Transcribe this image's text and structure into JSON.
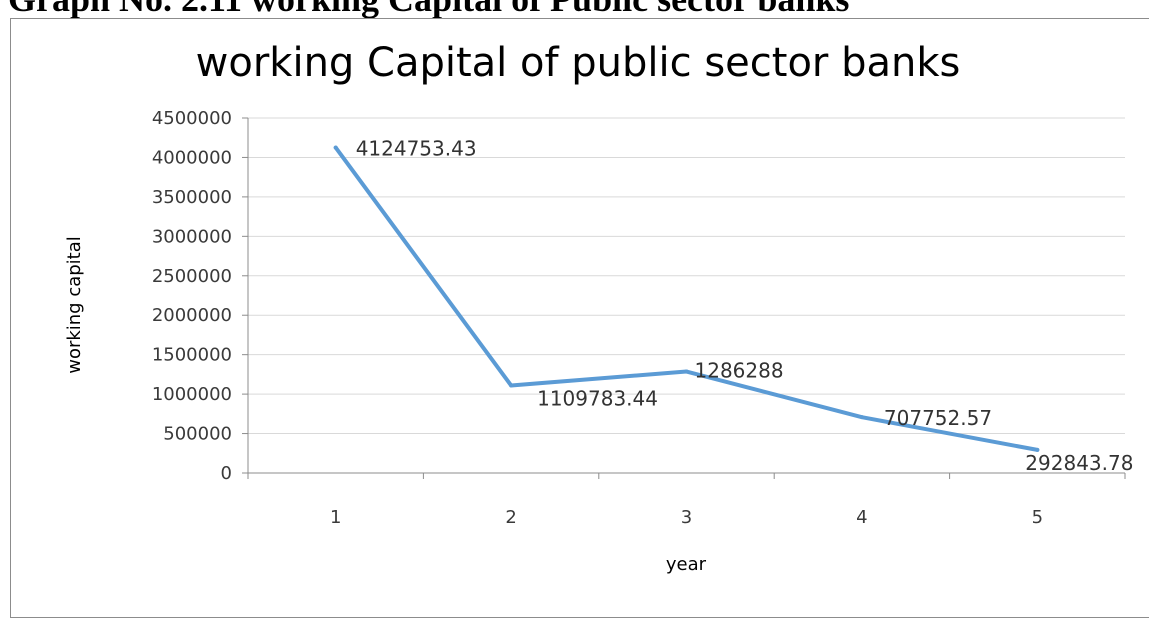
{
  "page": {
    "cropped_caption": "Graph No. 2.11 working Capital of Public sector banks"
  },
  "chart_data": {
    "type": "line",
    "title": "working Capital of public sector banks",
    "xlabel": "year",
    "ylabel": "working capital",
    "categories": [
      "1",
      "2",
      "3",
      "4",
      "5"
    ],
    "series": [
      {
        "values": [
          4124753.43,
          1109783.44,
          1286288,
          707752.57,
          292843.78
        ],
        "labels": [
          "4124753.43",
          "1109783.44",
          "1286288",
          "707752.57",
          "292843.78"
        ],
        "color": "#5b9bd5"
      }
    ],
    "ylim": [
      0,
      4500000
    ],
    "yticks": [
      "0",
      "500000",
      "1000000",
      "1500000",
      "2000000",
      "2500000",
      "3000000",
      "3500000",
      "4000000",
      "4500000"
    ],
    "grid": true,
    "legend": "none"
  }
}
